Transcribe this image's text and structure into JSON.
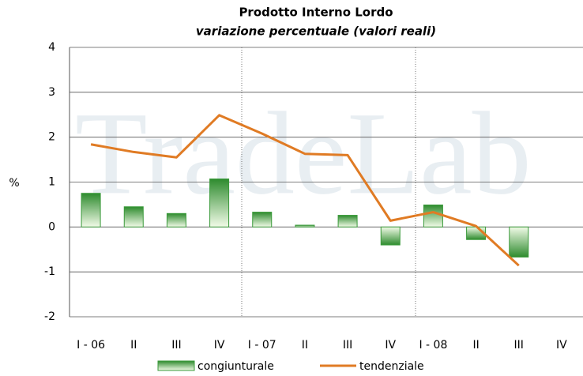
{
  "chart_data": {
    "type": "bar",
    "title": "Prodotto Interno Lordo",
    "subtitle": "variazione percentuale (valori reali)",
    "watermark": "TradeLab",
    "y_label": "%",
    "categories": [
      "I - 06",
      "II",
      "III",
      "IV",
      "I - 07",
      "II",
      "III",
      "IV",
      "I - 08",
      "II",
      "III",
      "IV"
    ],
    "series": [
      {
        "name": "congiunturale",
        "type": "bar",
        "color": "#3a9a3a",
        "values": [
          0.75,
          0.45,
          0.3,
          1.07,
          0.33,
          0.04,
          0.26,
          -0.4,
          0.49,
          -0.28,
          -0.67,
          null
        ]
      },
      {
        "name": "tendenziale",
        "type": "line",
        "color": "#e07b24",
        "values": [
          1.84,
          1.67,
          1.55,
          2.49,
          2.08,
          1.63,
          1.6,
          0.14,
          0.33,
          0.02,
          -0.86,
          null
        ]
      }
    ],
    "ylim": [
      -2,
      4
    ],
    "yticks": [
      -2,
      -1,
      0,
      1,
      2,
      3,
      4
    ],
    "grid": true
  }
}
